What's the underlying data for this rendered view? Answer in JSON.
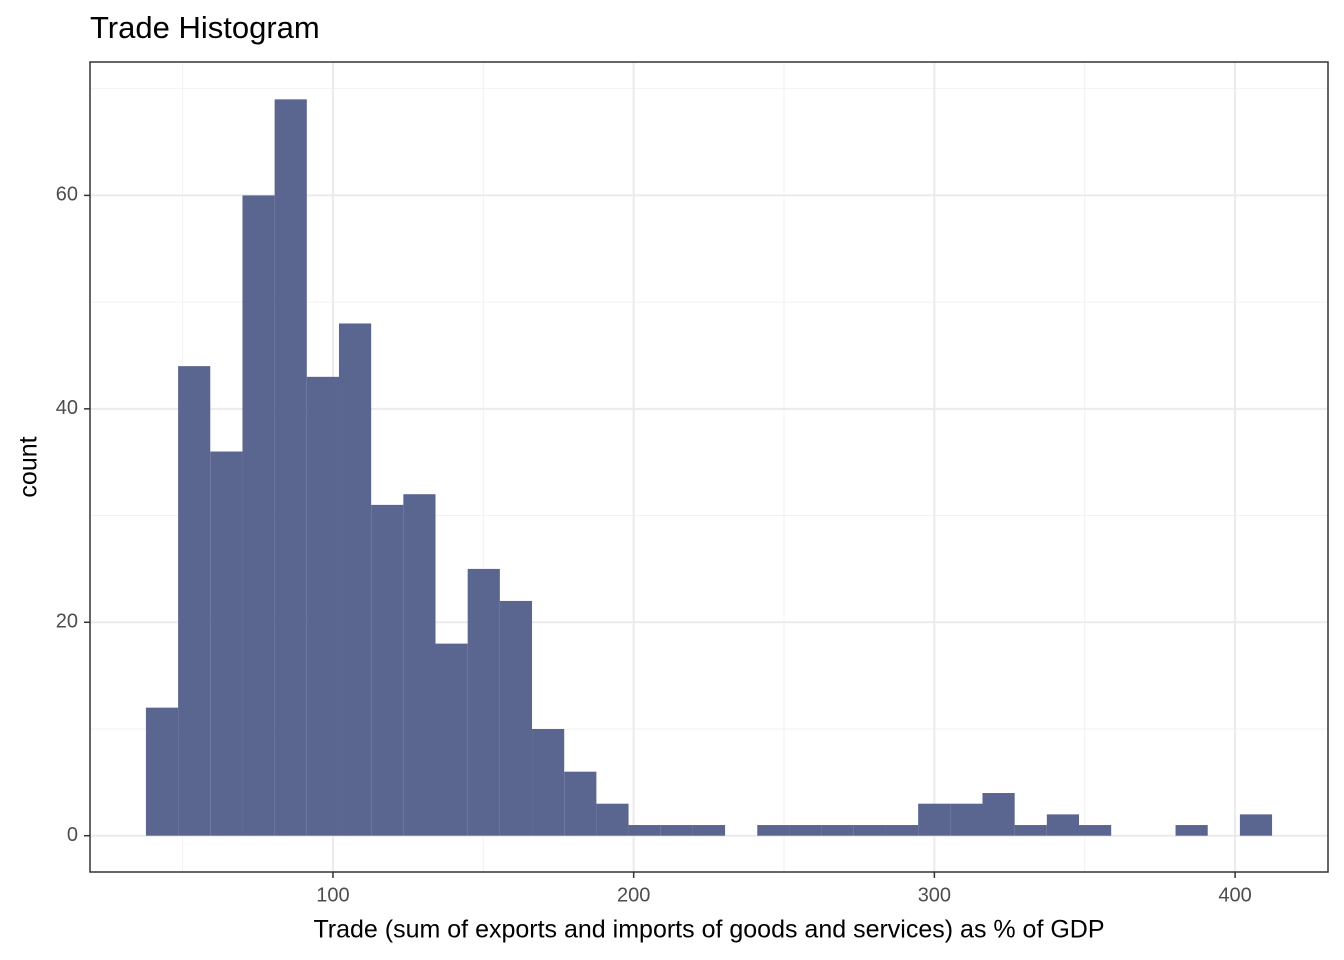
{
  "chart_data": {
    "type": "histogram",
    "title": "Trade Histogram",
    "x_label": "Trade (sum of exports and imports of goods and services) as % of GDP",
    "y_label": "count",
    "bins": [
      37.8,
      48.5,
      59.2,
      69.9,
      80.6,
      91.3,
      102.0,
      112.7,
      123.4,
      134.1,
      144.8,
      155.5,
      166.2,
      176.9,
      187.6,
      198.3,
      209.0,
      219.7,
      230.4,
      241.1,
      251.8,
      262.5,
      273.2,
      283.9,
      294.6,
      305.3,
      316.0,
      326.7,
      337.4,
      348.1,
      358.8,
      369.5,
      380.2,
      390.9,
      401.6,
      412.3
    ],
    "values": [
      12,
      44,
      36,
      60,
      69,
      43,
      48,
      31,
      32,
      18,
      25,
      22,
      10,
      6,
      3,
      1,
      1,
      1,
      0,
      1,
      1,
      1,
      1,
      1,
      3,
      3,
      4,
      1,
      2,
      1,
      0,
      0,
      1,
      0,
      2
    ],
    "color": "#5a6590",
    "xlim": [
      19.2,
      430.9
    ],
    "xticks": [
      100,
      200,
      300,
      400
    ],
    "ylim": [
      -3.4,
      72.5
    ],
    "yticks": [
      0,
      20,
      40,
      60
    ],
    "grid": true
  }
}
